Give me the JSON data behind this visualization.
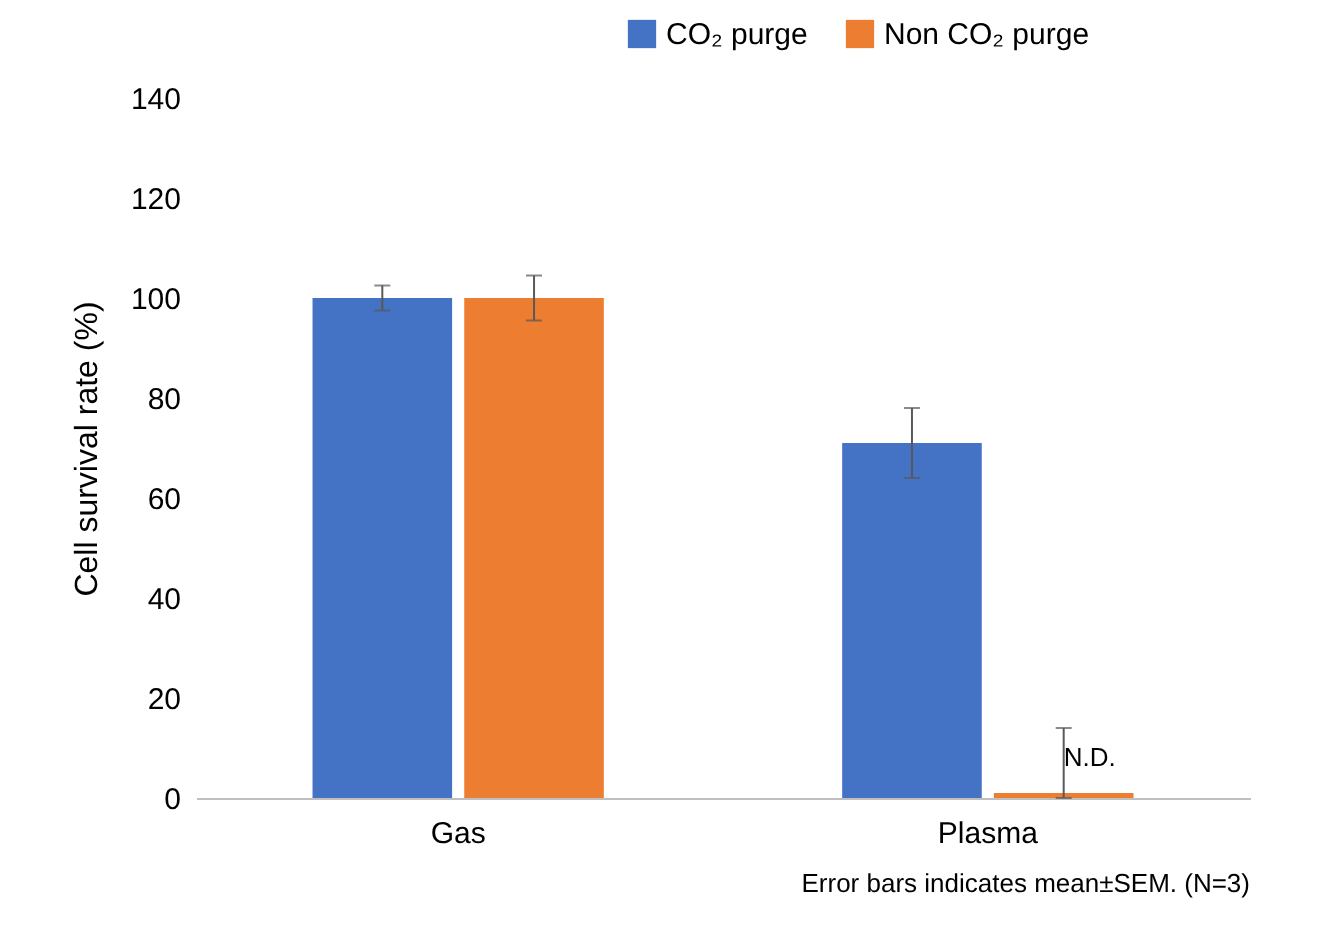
{
  "chart_data": {
    "type": "bar",
    "ylabel": "Cell survival rate (%)",
    "categories": [
      "Gas",
      "Plasma"
    ],
    "series": [
      {
        "name": "CO₂ purge",
        "color": "#4472c4",
        "values": [
          100,
          71
        ],
        "errors": [
          2.5,
          7
        ]
      },
      {
        "name": "Non CO₂ purge",
        "color": "#ed7d31",
        "values": [
          100,
          1
        ],
        "errors": [
          4.5,
          [
            0,
            14
          ]
        ]
      }
    ],
    "ylim": [
      0,
      140
    ],
    "yticks": [
      0,
      20,
      40,
      60,
      80,
      100,
      120,
      140
    ],
    "grid": false,
    "legend": "top right",
    "annotations": [
      {
        "text": "N.D.",
        "x": "Plasma",
        "y": 8
      },
      "Error bars indicates mean±SEM. (N=3)"
    ]
  }
}
